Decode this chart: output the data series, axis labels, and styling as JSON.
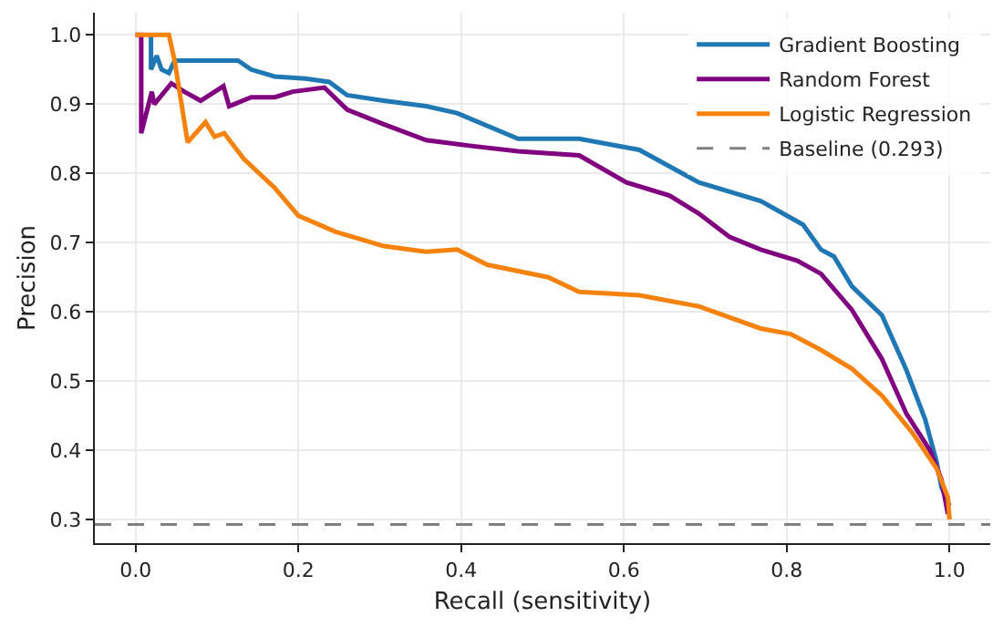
{
  "chart_data": {
    "type": "line",
    "xlabel": "Recall (sensitivity)",
    "ylabel": "Precision",
    "xlim": [
      -0.05,
      1.05
    ],
    "ylim": [
      0.266,
      1.032
    ],
    "xticks": [
      {
        "value": 0,
        "label": "0.0"
      },
      0.2,
      0.4,
      0.6,
      0.8,
      {
        "value": 1,
        "label": "1.0"
      }
    ],
    "yticks": [
      0.3,
      0.4,
      0.5,
      0.6,
      0.7,
      0.8,
      0.9,
      {
        "value": 1,
        "label": "1.0"
      }
    ],
    "grid": true,
    "legend": "top right",
    "marker": "none",
    "line_style": "solid",
    "series": [
      {
        "name": "Gradient Boosting",
        "color": "#1f77b4",
        "x": [
          0.019,
          0.019,
          0.026,
          0.032,
          0.041,
          0.048,
          0.077,
          0.104,
          0.126,
          0.142,
          0.171,
          0.209,
          0.238,
          0.26,
          0.305,
          0.357,
          0.395,
          0.47,
          0.545,
          0.619,
          0.692,
          0.768,
          0.82,
          0.842,
          0.858,
          0.88,
          0.917,
          0.947,
          0.97,
          0.984,
          0.99,
          1.0
        ],
        "values": [
          1.0,
          0.95,
          0.97,
          0.95,
          0.945,
          0.963,
          0.963,
          0.963,
          0.963,
          0.95,
          0.94,
          0.937,
          0.932,
          0.913,
          0.905,
          0.897,
          0.887,
          0.85,
          0.85,
          0.834,
          0.787,
          0.76,
          0.726,
          0.69,
          0.68,
          0.637,
          0.595,
          0.516,
          0.445,
          0.384,
          0.347,
          0.32
        ]
      },
      {
        "name": "Random Forest",
        "color": "#800080",
        "x": [
          0.0,
          0.007,
          0.007,
          0.02,
          0.023,
          0.044,
          0.06,
          0.08,
          0.108,
          0.115,
          0.142,
          0.171,
          0.193,
          0.232,
          0.26,
          0.305,
          0.357,
          0.41,
          0.47,
          0.545,
          0.603,
          0.656,
          0.692,
          0.73,
          0.768,
          0.813,
          0.842,
          0.88,
          0.917,
          0.947,
          0.976,
          0.99,
          0.998
        ],
        "values": [
          1.0,
          1.0,
          0.858,
          0.918,
          0.9,
          0.93,
          0.918,
          0.905,
          0.926,
          0.897,
          0.91,
          0.91,
          0.918,
          0.924,
          0.892,
          0.871,
          0.848,
          0.84,
          0.832,
          0.826,
          0.787,
          0.768,
          0.742,
          0.708,
          0.69,
          0.674,
          0.655,
          0.603,
          0.532,
          0.453,
          0.4,
          0.358,
          0.308
        ]
      },
      {
        "name": "Logistic Regression",
        "color": "#f5820d",
        "x": [
          0.0,
          0.041,
          0.048,
          0.064,
          0.086,
          0.097,
          0.109,
          0.133,
          0.171,
          0.2,
          0.245,
          0.305,
          0.357,
          0.395,
          0.432,
          0.507,
          0.545,
          0.619,
          0.692,
          0.768,
          0.805,
          0.842,
          0.88,
          0.917,
          0.954,
          0.984,
          0.998,
          1.0
        ],
        "values": [
          1.0,
          1.0,
          0.963,
          0.845,
          0.874,
          0.853,
          0.858,
          0.821,
          0.779,
          0.739,
          0.716,
          0.695,
          0.687,
          0.69,
          0.668,
          0.65,
          0.629,
          0.624,
          0.608,
          0.576,
          0.568,
          0.545,
          0.518,
          0.479,
          0.426,
          0.374,
          0.332,
          0.3
        ]
      }
    ],
    "ref_lines": [
      {
        "axis": "y",
        "value": 0.293,
        "label": "Baseline (0.293)",
        "color": "#808080",
        "line_style": "dashed"
      }
    ]
  }
}
